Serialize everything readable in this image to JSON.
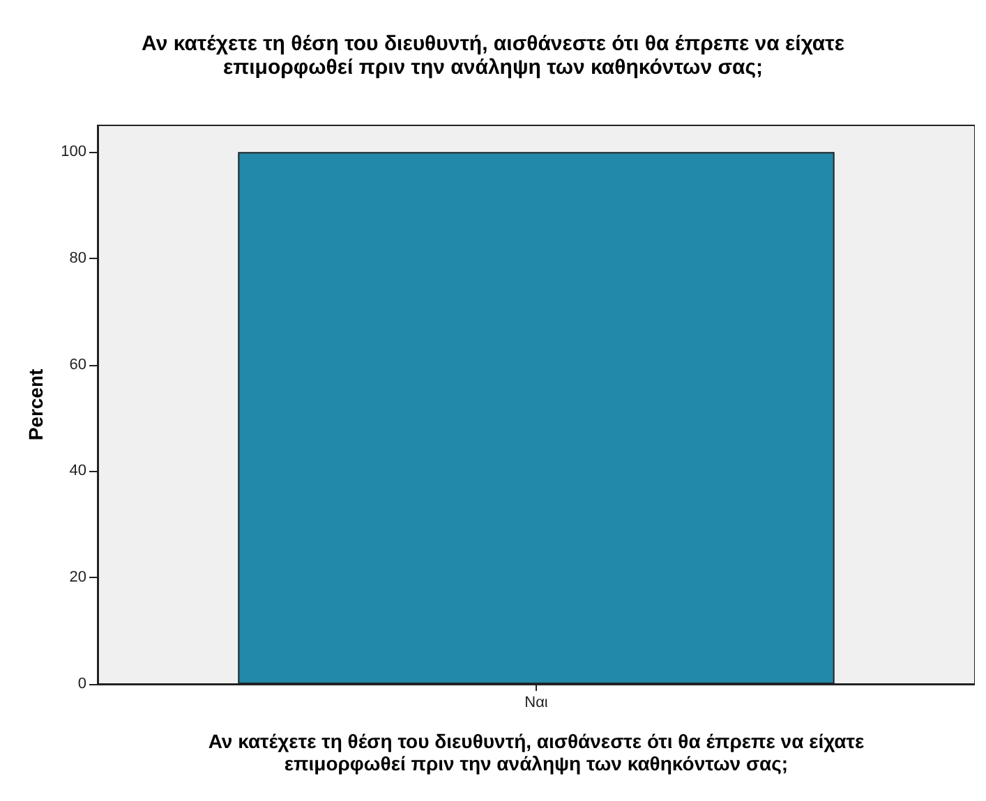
{
  "chart_data": {
    "type": "bar",
    "title": "Αν κατέχετε τη θέση του διευθυντή, αισθάνεστε ότι θα έπρεπε να είχατε\nεπιμορφωθεί πριν την ανάληψη των καθηκόντων σας;",
    "xlabel": "Αν κατέχετε τη θέση του διευθυντή, αισθάνεστε ότι θα έπρεπε να είχατε\nεπιμορφωθεί πριν την ανάληψη των καθηκόντων σας;",
    "ylabel": "Percent",
    "categories": [
      "Ναι"
    ],
    "values": [
      100
    ],
    "color": "#2389ab",
    "ylim": [
      0,
      105
    ],
    "yticks": [
      0,
      20,
      40,
      60,
      80,
      100
    ],
    "grid": false
  }
}
